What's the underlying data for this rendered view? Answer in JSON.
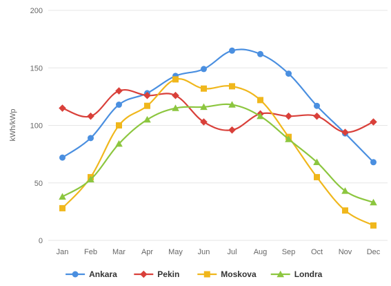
{
  "chart_data": {
    "type": "line",
    "categories": [
      "Jan",
      "Feb",
      "Mar",
      "Apr",
      "May",
      "Jun",
      "Jul",
      "Aug",
      "Sep",
      "Oct",
      "Nov",
      "Dec"
    ],
    "ylabel": "kWh/kWp",
    "xlabel": "",
    "ylim": [
      0,
      200
    ],
    "yticks": [
      0,
      50,
      100,
      150,
      200
    ],
    "grid": true,
    "legend_position": "bottom",
    "series": [
      {
        "name": "Ankara",
        "color": "#4a8fe0",
        "marker": "circle",
        "values": [
          72,
          89,
          118,
          128,
          143,
          149,
          165,
          162,
          145,
          117,
          93,
          68
        ]
      },
      {
        "name": "Pekin",
        "color": "#d9403a",
        "marker": "diamond",
        "values": [
          115,
          108,
          130,
          126,
          126,
          103,
          96,
          110,
          108,
          108,
          94,
          103
        ]
      },
      {
        "name": "Moskova",
        "color": "#f0b71c",
        "marker": "square",
        "values": [
          28,
          55,
          100,
          117,
          140,
          132,
          134,
          122,
          90,
          55,
          26,
          13
        ]
      },
      {
        "name": "Londra",
        "color": "#8cc63f",
        "marker": "triangle",
        "values": [
          38,
          53,
          84,
          105,
          115,
          116,
          118,
          108,
          88,
          68,
          43,
          33
        ]
      }
    ]
  }
}
